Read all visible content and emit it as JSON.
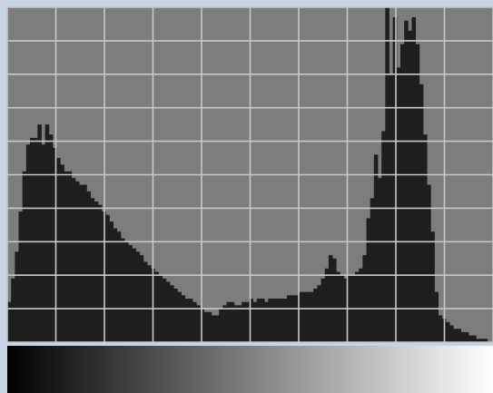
{
  "chart_data": {
    "type": "area",
    "xlim": [
      0,
      255
    ],
    "ylim": [
      0,
      1
    ],
    "grid": true,
    "colors": {
      "plot_background": "#7d7d7d",
      "fill": "#1e1e1e",
      "grid": "#c8c8c8",
      "frame_background": "#c6d4e6"
    },
    "gradient_bar": {
      "from": "#000000",
      "to": "#ffffff"
    },
    "x": [
      0,
      2,
      4,
      6,
      8,
      10,
      12,
      14,
      16,
      18,
      20,
      22,
      24,
      26,
      28,
      30,
      32,
      34,
      36,
      38,
      40,
      42,
      44,
      46,
      48,
      50,
      52,
      54,
      56,
      58,
      60,
      62,
      64,
      66,
      68,
      70,
      72,
      74,
      76,
      78,
      80,
      82,
      84,
      86,
      88,
      90,
      92,
      94,
      96,
      98,
      100,
      102,
      104,
      106,
      108,
      110,
      112,
      114,
      116,
      118,
      120,
      122,
      124,
      126,
      128,
      130,
      132,
      134,
      136,
      138,
      140,
      142,
      144,
      146,
      148,
      150,
      152,
      154,
      156,
      158,
      160,
      162,
      164,
      166,
      168,
      170,
      172,
      174,
      176,
      178,
      180,
      182,
      184,
      186,
      188,
      190,
      192,
      194,
      196,
      198,
      200,
      202,
      204,
      206,
      208,
      210,
      212,
      214,
      216,
      218,
      220,
      222,
      224,
      226,
      228,
      230,
      232,
      234,
      236,
      238,
      240,
      242,
      244,
      246,
      248,
      250,
      252,
      254
    ],
    "values": [
      0.12,
      0.19,
      0.27,
      0.39,
      0.51,
      0.59,
      0.61,
      0.61,
      0.65,
      0.59,
      0.65,
      0.62,
      0.58,
      0.55,
      0.53,
      0.51,
      0.51,
      0.49,
      0.48,
      0.47,
      0.47,
      0.45,
      0.43,
      0.42,
      0.41,
      0.39,
      0.38,
      0.36,
      0.34,
      0.33,
      0.31,
      0.3,
      0.29,
      0.28,
      0.27,
      0.26,
      0.24,
      0.23,
      0.22,
      0.21,
      0.2,
      0.19,
      0.18,
      0.17,
      0.16,
      0.15,
      0.14,
      0.13,
      0.13,
      0.12,
      0.11,
      0.1,
      0.09,
      0.09,
      0.08,
      0.08,
      0.1,
      0.11,
      0.12,
      0.12,
      0.11,
      0.11,
      0.12,
      0.12,
      0.13,
      0.12,
      0.13,
      0.13,
      0.12,
      0.13,
      0.13,
      0.13,
      0.13,
      0.13,
      0.14,
      0.14,
      0.14,
      0.15,
      0.15,
      0.15,
      0.15,
      0.16,
      0.17,
      0.19,
      0.22,
      0.26,
      0.25,
      0.21,
      0.2,
      0.19,
      0.2,
      0.2,
      0.21,
      0.22,
      0.26,
      0.37,
      0.43,
      0.56,
      0.49,
      0.63,
      1.0,
      0.8,
      0.97,
      0.82,
      0.89,
      0.96,
      0.93,
      0.97,
      0.89,
      0.77,
      0.62,
      0.47,
      0.33,
      0.15,
      0.08,
      0.07,
      0.06,
      0.05,
      0.04,
      0.04,
      0.03,
      0.03,
      0.02,
      0.02,
      0.01,
      0.01,
      0.01,
      0.0
    ]
  }
}
